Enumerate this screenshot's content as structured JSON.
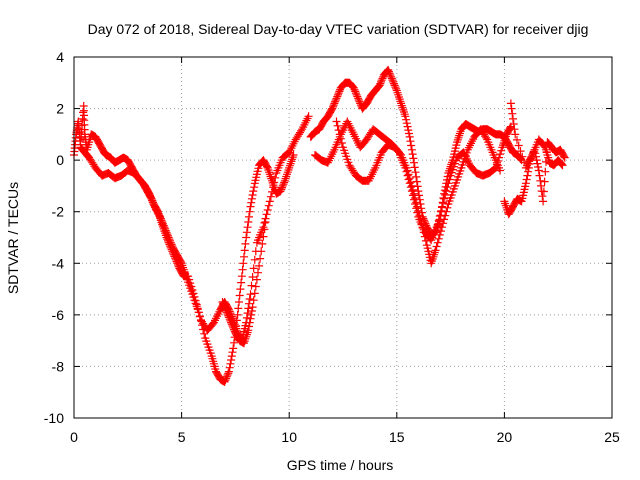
{
  "chart_data": {
    "type": "scatter",
    "title": "Day 072 of 2018, Sidereal Day-to-day VTEC variation (SDTVAR) for receiver djig",
    "xlabel": "GPS time / hours",
    "ylabel": "SDTVAR / TECUs",
    "xlim": [
      0,
      25
    ],
    "ylim": [
      -10,
      4
    ],
    "x_ticks": [
      "0",
      "5",
      "10",
      "15",
      "20",
      "25"
    ],
    "y_ticks": [
      "4",
      "2",
      "0",
      "-2",
      "-4",
      "-6",
      "-8",
      "-10"
    ],
    "grid": true,
    "marker": "plus",
    "color": "#ff0000",
    "series": [
      {
        "x": [
          0.0,
          0.1,
          0.2,
          0.3,
          0.45,
          0.5,
          0.6,
          0.8,
          1.0,
          1.2,
          1.4,
          1.5,
          1.7,
          1.9,
          2.1,
          2.3,
          2.5,
          2.7,
          2.9,
          3.1,
          3.3,
          3.5,
          3.7,
          3.9,
          4.1,
          4.3,
          4.5,
          4.7,
          4.9,
          5.1,
          5.3,
          5.6,
          5.9,
          6.2,
          6.5,
          6.8,
          7.0,
          7.2,
          7.4,
          7.6,
          7.8,
          8.0,
          8.2,
          8.5,
          8.8,
          9.1,
          9.4,
          9.7,
          10.0,
          10.3,
          10.6,
          10.9
        ],
        "y": [
          0.2,
          1.0,
          1.5,
          0.6,
          2.1,
          1.0,
          0.4,
          1.0,
          0.9,
          0.6,
          0.3,
          0.2,
          0.1,
          -0.1,
          0.0,
          0.1,
          0.0,
          -0.3,
          -0.6,
          -0.8,
          -1.0,
          -1.3,
          -1.7,
          -2.0,
          -2.5,
          -3.0,
          -3.4,
          -3.8,
          -4.2,
          -4.5,
          -4.5,
          -5.3,
          -6.2,
          -6.6,
          -6.3,
          -5.8,
          -5.5,
          -5.8,
          -6.2,
          -6.7,
          -7.0,
          -6.3,
          -5.2,
          -3.2,
          -2.6,
          -1.6,
          -0.5,
          0.1,
          0.3,
          0.8,
          1.2,
          1.7
        ]
      },
      {
        "x": [
          0.3,
          0.5,
          0.7,
          1.0,
          1.3,
          1.6,
          1.9,
          2.2,
          2.5,
          2.8,
          3.0,
          3.2,
          3.4,
          3.6,
          3.8,
          4.0,
          4.2,
          4.4,
          4.6,
          4.8,
          5.0,
          5.2,
          5.5,
          5.8,
          6.1,
          6.4,
          6.6,
          6.8,
          7.0,
          7.2,
          7.4,
          7.6,
          7.8,
          8.0,
          8.2,
          8.4,
          8.6,
          8.8,
          9.0,
          9.2,
          9.4,
          9.6,
          9.8,
          10.0,
          10.2
        ],
        "y": [
          0.5,
          0.3,
          0.1,
          -0.3,
          -0.6,
          -0.5,
          -0.7,
          -0.6,
          -0.4,
          -0.5,
          -0.7,
          -0.9,
          -1.2,
          -1.5,
          -1.9,
          -2.2,
          -2.6,
          -3.0,
          -3.4,
          -3.7,
          -4.0,
          -4.5,
          -5.2,
          -5.9,
          -6.9,
          -7.6,
          -8.2,
          -8.5,
          -8.6,
          -8.2,
          -7.3,
          -6.0,
          -4.5,
          -3.0,
          -1.8,
          -0.9,
          -0.2,
          0.0,
          -0.3,
          -0.8,
          -1.3,
          -1.2,
          -0.8,
          -0.3,
          0.2
        ]
      },
      {
        "x": [
          6.9,
          7.1,
          7.3,
          7.5,
          7.7,
          7.9,
          8.1,
          8.3,
          8.6,
          8.9
        ],
        "y": [
          -5.5,
          -5.9,
          -6.3,
          -6.7,
          -7.0,
          -7.1,
          -6.6,
          -5.7,
          -4.1,
          -2.4
        ]
      },
      {
        "x": [
          11.0,
          11.2,
          11.4,
          11.6,
          11.8,
          12.0,
          12.2,
          12.4,
          12.6,
          12.8,
          13.0,
          13.2,
          13.4,
          13.6,
          13.8,
          14.0,
          14.2,
          14.4,
          14.6,
          14.8,
          15.0,
          15.2,
          15.4,
          15.6,
          15.8,
          16.0,
          16.2,
          16.4,
          16.6,
          16.8,
          17.0,
          17.2,
          17.4,
          17.6,
          17.8,
          18.0,
          18.2,
          18.4,
          18.6,
          18.8,
          19.0,
          19.2,
          19.4,
          19.6,
          19.8,
          20.0,
          20.2,
          20.4,
          20.6,
          20.8
        ],
        "y": [
          0.9,
          1.1,
          1.2,
          1.5,
          1.7,
          2.0,
          2.4,
          2.8,
          3.0,
          3.0,
          2.8,
          2.4,
          2.0,
          2.2,
          2.5,
          2.7,
          2.9,
          3.3,
          3.5,
          3.1,
          2.7,
          2.2,
          1.7,
          0.9,
          -0.1,
          -1.2,
          -2.2,
          -2.6,
          -2.9,
          -2.8,
          -2.3,
          -1.3,
          -0.5,
          0.0,
          0.7,
          1.2,
          1.4,
          1.3,
          1.2,
          1.1,
          1.2,
          1.2,
          1.1,
          1.0,
          1.0,
          0.9,
          0.6,
          0.3,
          0.2,
          0.0
        ]
      },
      {
        "x": [
          11.2,
          11.5,
          11.8,
          12.1,
          12.4,
          12.7,
          13.0,
          13.3,
          13.6,
          13.9,
          14.2,
          14.5,
          14.8,
          15.1,
          15.4,
          15.7,
          16.0,
          16.3,
          16.6,
          16.9,
          17.2,
          17.5,
          17.8,
          18.1,
          18.4,
          18.7,
          19.0,
          19.3,
          19.6,
          19.9,
          20.1,
          20.3
        ],
        "y": [
          0.2,
          0.0,
          -0.1,
          0.4,
          1.0,
          1.5,
          1.0,
          0.5,
          0.8,
          1.2,
          1.0,
          0.8,
          0.6,
          0.3,
          -0.3,
          -1.2,
          -2.2,
          -2.8,
          -3.1,
          -2.5,
          -1.5,
          -0.6,
          0.1,
          0.3,
          -0.2,
          -0.5,
          -0.6,
          -0.5,
          -0.3,
          0.5,
          1.0,
          1.3
        ]
      },
      {
        "x": [
          12.2,
          12.5,
          12.8,
          13.1,
          13.4,
          13.7,
          14.0,
          14.3,
          14.6,
          14.9,
          15.2,
          15.5,
          15.8,
          16.1,
          16.4,
          16.6,
          16.8,
          17.1,
          17.4,
          17.7,
          18.0,
          18.3,
          18.6,
          18.9,
          19.2,
          19.5,
          19.8
        ],
        "y": [
          1.5,
          0.5,
          -0.2,
          -0.6,
          -0.8,
          -0.8,
          -0.3,
          0.3,
          0.6,
          0.5,
          0.2,
          -0.4,
          -1.3,
          -2.3,
          -3.3,
          -4.0,
          -3.5,
          -2.6,
          -1.7,
          -1.0,
          -0.3,
          0.4,
          0.9,
          1.2,
          0.8,
          0.2,
          -0.4
        ]
      },
      {
        "x": [
          20.0,
          20.2,
          20.4,
          20.6,
          20.8,
          21.0,
          21.2,
          21.4,
          21.6,
          21.8,
          22.0,
          22.2,
          22.4,
          22.6,
          22.8
        ],
        "y": [
          -1.6,
          -2.1,
          -1.8,
          -1.5,
          -1.6,
          -0.9,
          0.0,
          0.4,
          -0.4,
          -1.6,
          0.7,
          0.5,
          0.3,
          0.4,
          0.1
        ]
      },
      {
        "x": [
          20.3,
          20.5,
          21.0,
          21.3,
          21.6,
          21.9,
          22.1,
          22.3,
          22.5,
          22.7
        ],
        "y": [
          2.2,
          1.0,
          -0.3,
          0.2,
          0.8,
          0.5,
          -0.1,
          -0.2,
          0.0,
          -0.2
        ]
      }
    ]
  }
}
